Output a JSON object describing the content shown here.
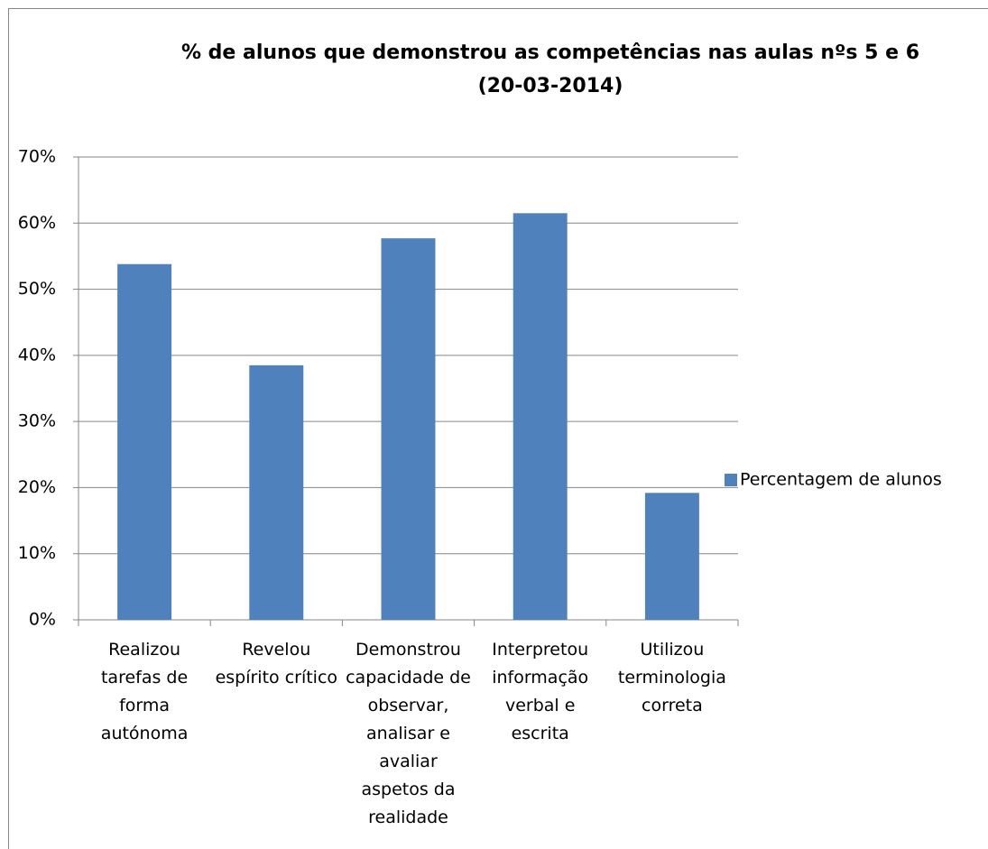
{
  "chart_data": {
    "type": "bar",
    "title": "% de alunos que demonstrou as competências nas aulas nºs 5 e 6 (20-03-2014)",
    "categories": [
      "Realizou tarefas de forma autónoma",
      "Revelou espírito crítico",
      "Demonstrou capacidade de observar, analisar e avaliar aspetos da realidade",
      "Interpretou informação verbal e escrita",
      "Utilizou terminologia correta"
    ],
    "series": [
      {
        "name": "Percentagem de alunos",
        "color": "#4f81bd",
        "values": [
          53.8,
          38.5,
          57.7,
          61.5,
          19.2
        ]
      }
    ],
    "ylim": [
      0,
      70
    ],
    "yticks": [
      {
        "value": 0,
        "label": "0%"
      },
      {
        "value": 10,
        "label": "10%"
      },
      {
        "value": 20,
        "label": "20%"
      },
      {
        "value": 30,
        "label": "30%"
      },
      {
        "value": 40,
        "label": "40%"
      },
      {
        "value": 50,
        "label": "50%"
      },
      {
        "value": 60,
        "label": "60%"
      },
      {
        "value": 70,
        "label": "70%"
      }
    ],
    "grid": true,
    "legend": "right"
  }
}
